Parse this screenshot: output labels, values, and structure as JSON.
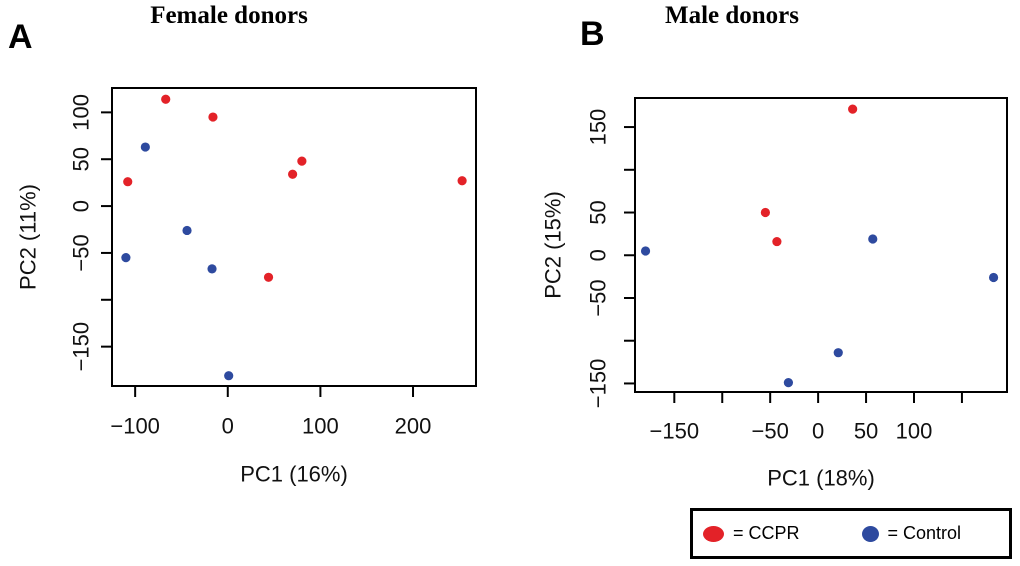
{
  "figure": {
    "background": "#ffffff",
    "colors": {
      "ccpr": "#e32228",
      "control": "#2e4a9f",
      "axis": "#000000",
      "text": "#111111"
    },
    "legend": {
      "ccpr_label": "= CCPR",
      "control_label": "= Control"
    }
  },
  "panels": [
    {
      "letter": "A",
      "title": "Female donors"
    },
    {
      "letter": "B",
      "title": "Male donors"
    }
  ],
  "chart_data": [
    {
      "type": "scatter",
      "panel": "A",
      "title": "Female donors",
      "xlabel": "PC1 (16%)",
      "ylabel": "PC2 (11%)",
      "xlim": [
        -125,
        268
      ],
      "ylim": [
        -192,
        126
      ],
      "grid": false,
      "xticks": [
        {
          "v": -100,
          "label": "−100"
        },
        {
          "v": 0,
          "label": "0"
        },
        {
          "v": 100,
          "label": "100"
        },
        {
          "v": 200,
          "label": "200"
        }
      ],
      "yticks": [
        {
          "v": 100,
          "label": "100"
        },
        {
          "v": 50,
          "label": "50"
        },
        {
          "v": 0,
          "label": "0"
        },
        {
          "v": -50,
          "label": "−50"
        },
        {
          "v": -100,
          "label": ""
        },
        {
          "v": -150,
          "label": "−150"
        }
      ],
      "series": [
        {
          "name": "CCPR",
          "color": "ccpr",
          "points": [
            [
              -67,
              114
            ],
            [
              -16,
              95
            ],
            [
              -108,
              26
            ],
            [
              80,
              48
            ],
            [
              70,
              34
            ],
            [
              253,
              27
            ],
            [
              44,
              -76
            ]
          ]
        },
        {
          "name": "Control",
          "color": "control",
          "points": [
            [
              -89,
              63
            ],
            [
              -44,
              -26
            ],
            [
              -110,
              -55
            ],
            [
              -17,
              -67
            ],
            [
              1,
              -181
            ]
          ]
        }
      ]
    },
    {
      "type": "scatter",
      "panel": "B",
      "title": "Male donors",
      "xlabel": "PC1 (18%)",
      "ylabel": "PC2 (15%)",
      "xlim": [
        -191,
        197
      ],
      "ylim": [
        -160,
        184
      ],
      "grid": false,
      "xticks": [
        {
          "v": -150,
          "label": "−150"
        },
        {
          "v": -100,
          "label": ""
        },
        {
          "v": -50,
          "label": "−50"
        },
        {
          "v": 0,
          "label": "0"
        },
        {
          "v": 50,
          "label": "50"
        },
        {
          "v": 100,
          "label": "100"
        },
        {
          "v": 150,
          "label": ""
        }
      ],
      "yticks": [
        {
          "v": 150,
          "label": "150"
        },
        {
          "v": 100,
          "label": ""
        },
        {
          "v": 50,
          "label": "50"
        },
        {
          "v": 0,
          "label": "0"
        },
        {
          "v": -50,
          "label": "−50"
        },
        {
          "v": -100,
          "label": ""
        },
        {
          "v": -150,
          "label": "−150"
        }
      ],
      "series": [
        {
          "name": "CCPR",
          "color": "ccpr",
          "points": [
            [
              36,
              171
            ],
            [
              -55,
              50
            ],
            [
              -43,
              16
            ]
          ]
        },
        {
          "name": "Control",
          "color": "control",
          "points": [
            [
              -180,
              5
            ],
            [
              57,
              19
            ],
            [
              183,
              -26
            ],
            [
              21,
              -114
            ],
            [
              -31,
              -149
            ]
          ]
        }
      ]
    }
  ]
}
